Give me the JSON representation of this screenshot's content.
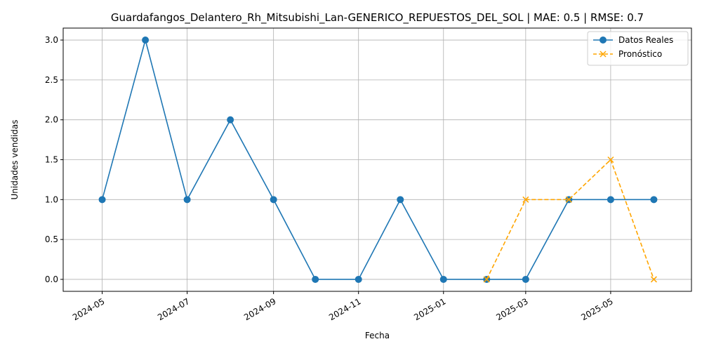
{
  "chart_data": {
    "type": "line",
    "title": "Guardafangos_Delantero_Rh_Mitsubishi_Lan-GENERICO_REPUESTOS_DEL_SOL | MAE: 0.5 | RMSE: 0.7",
    "xlabel": "Fecha",
    "ylabel": "Unidades vendidas",
    "xlim": [
      "2024-04-03",
      "2025-06-28"
    ],
    "ylim": [
      -0.15,
      3.15
    ],
    "grid": true,
    "legend_position": "top-right",
    "x_ticks": [
      "2024-05",
      "2024-07",
      "2024-09",
      "2024-11",
      "2025-01",
      "2025-03",
      "2025-05"
    ],
    "y_ticks": [
      "0.0",
      "0.5",
      "1.0",
      "1.5",
      "2.0",
      "2.5",
      "3.0"
    ],
    "series": [
      {
        "name": "Datos Reales",
        "color": "#1f77b4",
        "marker": "circle",
        "line_style": "solid",
        "x": [
          "2024-05-01",
          "2024-06-01",
          "2024-07-01",
          "2024-08-01",
          "2024-09-01",
          "2024-10-01",
          "2024-11-01",
          "2024-12-01",
          "2025-01-01",
          "2025-02-01",
          "2025-03-01",
          "2025-04-01",
          "2025-05-01",
          "2025-06-01"
        ],
        "y": [
          1,
          3,
          1,
          2,
          1,
          0,
          0,
          1,
          0,
          0,
          0,
          1,
          1,
          1
        ]
      },
      {
        "name": "Pronóstico",
        "color": "#ffa500",
        "marker": "x",
        "line_style": "dashed",
        "x": [
          "2025-02-01",
          "2025-03-01",
          "2025-04-01",
          "2025-05-01",
          "2025-06-01"
        ],
        "y": [
          0,
          1,
          1,
          1.5,
          0
        ]
      }
    ]
  }
}
